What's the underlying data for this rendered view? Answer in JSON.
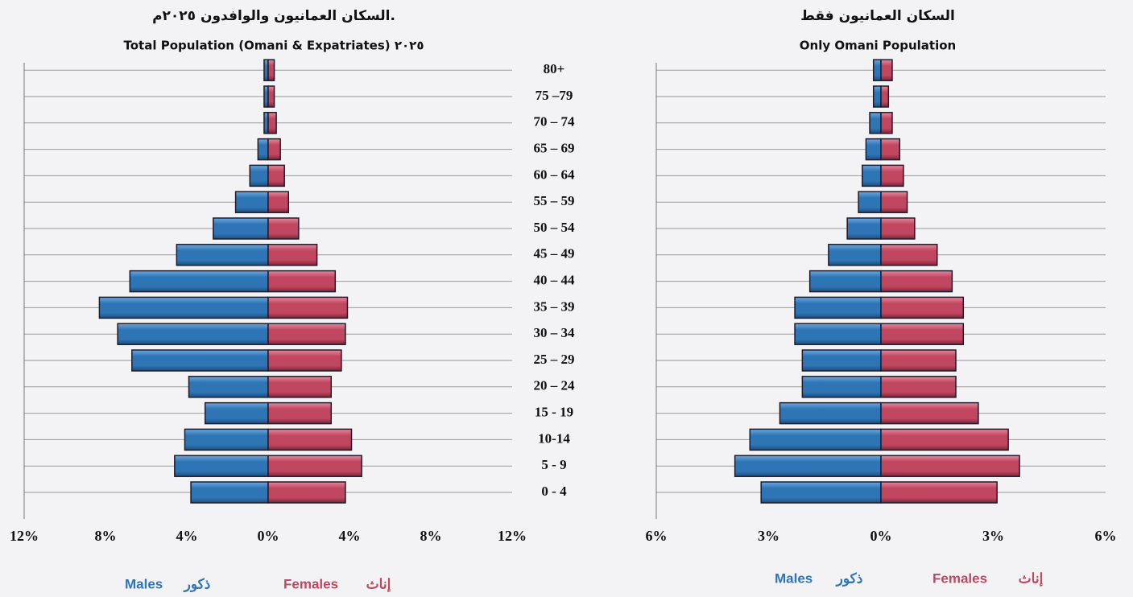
{
  "chart_data": [
    {
      "type": "bar",
      "title": "السكان العمانيون والوافدون ٢٠٢٥م.",
      "subtitle": "Total Population (Omani & Expatriates) ٢٠٢٥",
      "categories": [
        "0 -  4",
        "5 -  9",
        "10-14",
        "15 - 19",
        "20 – 24",
        "25 – 29",
        "30 – 34",
        "35 – 39",
        "40 – 44",
        "45 – 49",
        "50 – 54",
        "55 – 59",
        "60 – 64",
        "65 – 69",
        "70 – 74",
        "75 –79",
        "80+"
      ],
      "series": [
        {
          "name": "Males",
          "name_ar": "ذكور",
          "color": "#2e75b6",
          "values": [
            -3.8,
            -4.6,
            -4.1,
            -3.1,
            -3.9,
            -6.7,
            -7.4,
            -8.3,
            -6.8,
            -4.5,
            -2.7,
            -1.6,
            -0.9,
            -0.5,
            -0.2,
            -0.2,
            -0.2
          ]
        },
        {
          "name": "Females",
          "name_ar": "إناث",
          "color": "#c0475f",
          "values": [
            3.8,
            4.6,
            4.1,
            3.1,
            3.1,
            3.6,
            3.8,
            3.9,
            3.3,
            2.4,
            1.5,
            1.0,
            0.8,
            0.6,
            0.4,
            0.3,
            0.3
          ]
        }
      ],
      "xlim": [
        -12,
        12
      ],
      "xticks": [
        {
          "value": -12,
          "label": "12%"
        },
        {
          "value": -8,
          "label": "8%"
        },
        {
          "value": -4,
          "label": "4%"
        },
        {
          "value": 0,
          "label": "0%"
        },
        {
          "value": 4,
          "label": "4%"
        },
        {
          "value": 8,
          "label": "8%"
        },
        {
          "value": 12,
          "label": "12%"
        }
      ]
    },
    {
      "type": "bar",
      "title": "السكان العمانيون فقط",
      "subtitle": "Only Omani Population",
      "series": [
        {
          "name": "Males",
          "name_ar": "ذكور",
          "color": "#2e75b6",
          "values": [
            -3.2,
            -3.9,
            -3.5,
            -2.7,
            -2.1,
            -2.1,
            -2.3,
            -2.3,
            -1.9,
            -1.4,
            -0.9,
            -0.6,
            -0.5,
            -0.4,
            -0.3,
            -0.2,
            -0.2
          ]
        },
        {
          "name": "Females",
          "name_ar": "إناث",
          "color": "#c0475f",
          "values": [
            3.1,
            3.7,
            3.4,
            2.6,
            2.0,
            2.0,
            2.2,
            2.2,
            1.9,
            1.5,
            0.9,
            0.7,
            0.6,
            0.5,
            0.3,
            0.2,
            0.3
          ]
        }
      ],
      "xlim": [
        -6,
        6
      ],
      "xticks": [
        {
          "value": -6,
          "label": "6%"
        },
        {
          "value": -3,
          "label": "3%"
        },
        {
          "value": 0,
          "label": "0%"
        },
        {
          "value": 3,
          "label": "3%"
        },
        {
          "value": 6,
          "label": "6%"
        }
      ]
    }
  ]
}
